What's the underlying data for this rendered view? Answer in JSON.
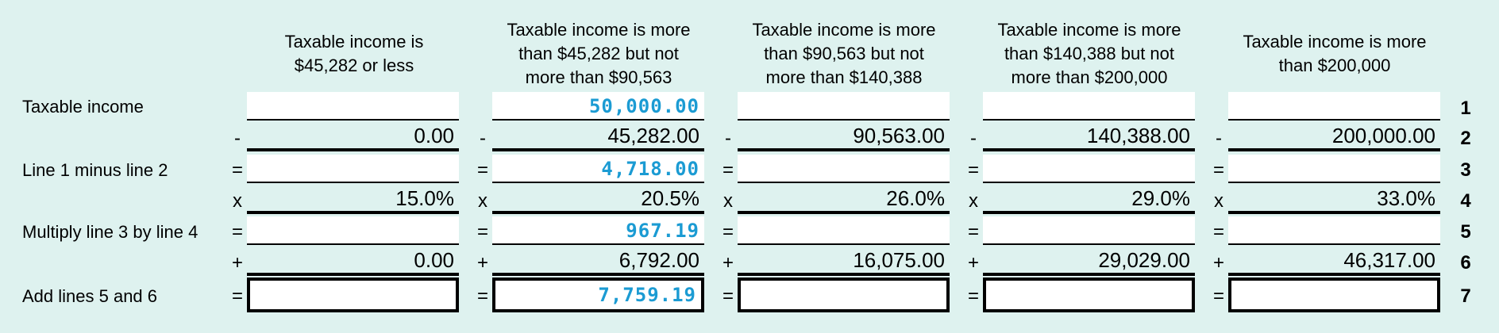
{
  "headers": [
    "Taxable income is\n$45,282 or less",
    "Taxable income is more\nthan $45,282 but not\nmore than $90,563",
    "Taxable income is more\nthan $90,563 but not\nmore than $140,388",
    "Taxable income is more\nthan $140,388 but not\nmore than $200,000",
    "Taxable income is more\nthan $200,000"
  ],
  "row_labels": {
    "r1": "Taxable income",
    "r3": "Line 1 minus line 2",
    "r5": "Multiply line 3 by line 4",
    "r7": "Add lines 5 and 6"
  },
  "operators": {
    "r2": "-",
    "r3": "=",
    "r4": "x",
    "r5": "=",
    "r6": "+",
    "r7": "="
  },
  "line_numbers": [
    "1",
    "2",
    "3",
    "4",
    "5",
    "6",
    "7"
  ],
  "columns": [
    {
      "r1": "",
      "r2": "0.00",
      "r3": "",
      "r4": "15.0%",
      "r5": "",
      "r6": "0.00",
      "r7": ""
    },
    {
      "r1": "50,000.00",
      "r2": "45,282.00",
      "r3": "4,718.00",
      "r4": "20.5%",
      "r5": "967.19",
      "r6": "6,792.00",
      "r7": "7,759.19"
    },
    {
      "r1": "",
      "r2": "90,563.00",
      "r3": "",
      "r4": "26.0%",
      "r5": "",
      "r6": "16,075.00",
      "r7": ""
    },
    {
      "r1": "",
      "r2": "140,388.00",
      "r3": "",
      "r4": "29.0%",
      "r5": "",
      "r6": "29,029.00",
      "r7": ""
    },
    {
      "r1": "",
      "r2": "200,000.00",
      "r3": "",
      "r4": "33.0%",
      "r5": "",
      "r6": "46,317.00",
      "r7": ""
    }
  ],
  "colors": {
    "background": "#def2ef",
    "entered_value": "#1b9bd3"
  }
}
